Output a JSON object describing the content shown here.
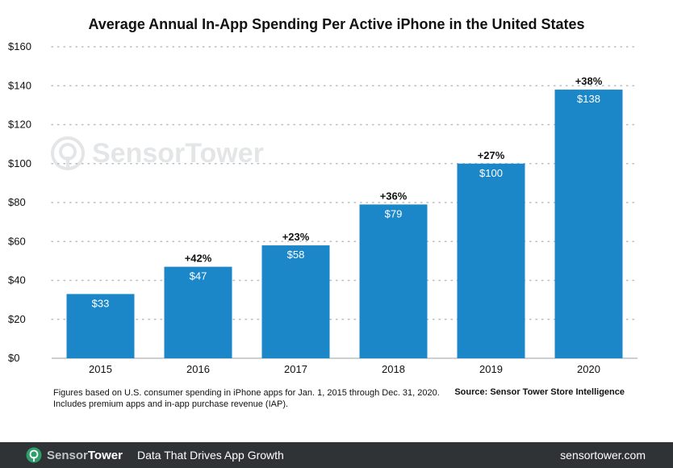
{
  "chart_data": {
    "type": "bar",
    "title": "Average Annual In-App Spending Per Active iPhone in the United States",
    "categories": [
      "2015",
      "2016",
      "2017",
      "2018",
      "2019",
      "2020"
    ],
    "values": [
      33,
      47,
      58,
      79,
      100,
      138
    ],
    "value_labels": [
      "$33",
      "$47",
      "$58",
      "$79",
      "$100",
      "$138"
    ],
    "growth_labels": [
      "",
      "+42%",
      "+23%",
      "+36%",
      "+27%",
      "+38%"
    ],
    "y_ticks": [
      0,
      20,
      40,
      60,
      80,
      100,
      120,
      140,
      160
    ],
    "y_tick_labels": [
      "$0",
      "$20",
      "$40",
      "$60",
      "$80",
      "$100",
      "$120",
      "$140",
      "$160"
    ],
    "ylim": [
      0,
      160
    ],
    "grid": true,
    "bar_color": "#1b87c9"
  },
  "footnote_line1": "Figures based on U.S. consumer spending in iPhone apps for Jan. 1, 2015 through Dec. 31, 2020.",
  "footnote_line2": "Includes premium apps and in-app purchase revenue (IAP).",
  "source": "Source: Sensor Tower Store Intelligence",
  "watermark": {
    "sensor": "Sensor",
    "tower": "Tower"
  },
  "footer": {
    "brand_sensor": "Sensor",
    "brand_tower": "Tower",
    "tagline": "Data That Drives App Growth",
    "site": "sensortower.com",
    "logo_icon": "sensortower-logo-icon",
    "accent": "#2e9e6b"
  }
}
